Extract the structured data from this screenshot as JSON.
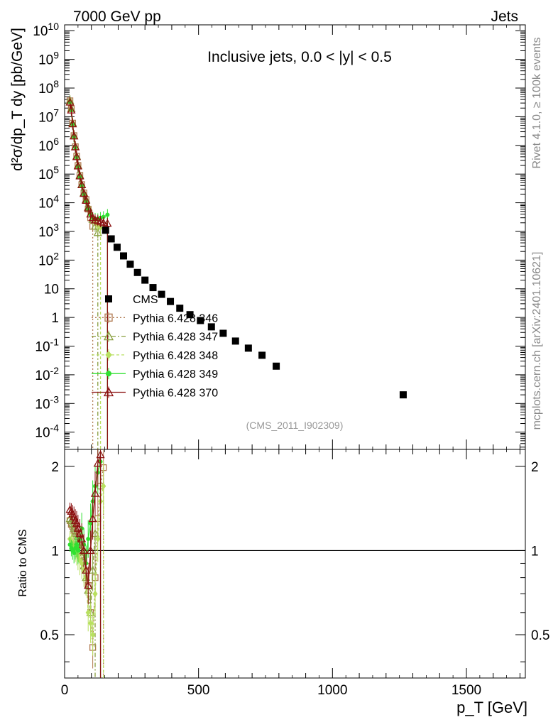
{
  "header": {
    "left": "7000 GeV pp",
    "right": "Jets"
  },
  "side_labels": {
    "top": "Rivet 4.1.0, ≥ 100k events",
    "bottom": "mcplots.cern.ch [arXiv:2401.10621]"
  },
  "chart_data": [
    {
      "type": "scatter",
      "title": "Inclusive jets, 0.0 < |y| < 0.5",
      "annotation": "(CMS_2011_I902309)",
      "xlabel": "p_T [GeV]",
      "ylabel": "d²σ/dp_T dy [pb/GeV]",
      "yscale": "log",
      "xlim": [
        0,
        1720
      ],
      "ylim": [
        2.5e-05,
        16000000000.0
      ],
      "x_ticks": [
        "0",
        "500",
        "1000",
        "1500"
      ],
      "y_ticks": [
        "10^-4",
        "10^-3",
        "10^-2",
        "10^-1",
        "1",
        "10",
        "10^2",
        "10^3",
        "10^4",
        "10^5",
        "10^6",
        "10^7",
        "10^8",
        "10^9",
        "10^10"
      ],
      "legend_position": "center",
      "series": [
        {
          "name": "CMS",
          "color": "#000000",
          "marker": "filled-square",
          "x": [
            153,
            174,
            196,
            220,
            245,
            272,
            300,
            330,
            362,
            395,
            430,
            468,
            507,
            548,
            592,
            638,
            686,
            737,
            790,
            1264
          ],
          "y": [
            1100,
            550,
            280,
            140,
            72,
            37,
            20,
            11,
            6.4,
            3.6,
            2.1,
            1.25,
            0.78,
            0.47,
            0.28,
            0.15,
            0.085,
            0.048,
            0.02,
            0.002
          ]
        },
        {
          "name": "Pythia 6.428 346",
          "color": "#b07a50",
          "marker": "open-square",
          "dash": "2,3",
          "x": [
            20,
            25,
            30,
            35,
            40,
            45,
            50,
            57,
            64,
            72,
            80,
            88,
            97,
            105
          ],
          "y": [
            36000000.0,
            19000000.0,
            6000000.0,
            2200000.0,
            900000.0,
            420000.0,
            200000.0,
            90000.0,
            43000.0,
            22000.0,
            13000.0,
            6000.0,
            3000.0,
            1500.0
          ]
        },
        {
          "name": "Pythia 6.428 347",
          "color": "#8aa040",
          "marker": "open-triangle",
          "dash": "6,3,2,3",
          "x": [
            20,
            25,
            30,
            35,
            40,
            45,
            50,
            57,
            64,
            72,
            80,
            88,
            97,
            105,
            114,
            124
          ],
          "y": [
            36000000.0,
            19000000.0,
            6000000.0,
            2200000.0,
            900000.0,
            420000.0,
            200000.0,
            90000.0,
            43000.0,
            22000.0,
            13000.0,
            7000.0,
            4000.0,
            2600.0,
            1500.0,
            900
          ]
        },
        {
          "name": "Pythia 6.428 348",
          "color": "#b8e060",
          "marker": "diamond",
          "dash": "4,3",
          "x": [
            20,
            25,
            30,
            35,
            40,
            45,
            50,
            57,
            64,
            72,
            80,
            88,
            97,
            105,
            114,
            124,
            134
          ],
          "y": [
            35000000.0,
            18000000.0,
            5800000.0,
            2100000.0,
            880000.0,
            410000.0,
            190000.0,
            85000.0,
            41000.0,
            21000.0,
            12000.0,
            7000.0,
            4200.0,
            2800.0,
            2000.0,
            1600.0,
            1400.0
          ]
        },
        {
          "name": "Pythia 6.428 349",
          "color": "#30e030",
          "marker": "circle",
          "x": [
            20,
            25,
            30,
            35,
            40,
            45,
            50,
            57,
            64,
            72,
            80,
            88,
            97,
            105,
            114,
            124,
            134,
            145,
            160
          ],
          "y": [
            33000000.0,
            17000000.0,
            5500000.0,
            2000000.0,
            840000.0,
            390000.0,
            180000.0,
            80000.0,
            39000.0,
            20000.0,
            11000.0,
            6000.0,
            3800.0,
            3000.0,
            2800.0,
            2700.0,
            3000.0,
            3200.0,
            3800.0
          ]
        },
        {
          "name": "Pythia 6.428 370",
          "color": "#8b1010",
          "marker": "open-triangle",
          "x": [
            20,
            25,
            30,
            35,
            40,
            45,
            50,
            57,
            64,
            72,
            80,
            88,
            97,
            105,
            114,
            124,
            134,
            145,
            160
          ],
          "y": [
            32000000.0,
            17000000.0,
            5600000.0,
            2100000.0,
            880000.0,
            400000.0,
            190000.0,
            85000.0,
            42000.0,
            21000.0,
            12000.0,
            6500.0,
            4000.0,
            3000.0,
            2500.0,
            2400.0,
            2200.0,
            2000.0,
            1900.0
          ]
        }
      ]
    },
    {
      "type": "scatter",
      "ylabel": "Ratio to CMS",
      "xlim": [
        0,
        1720
      ],
      "ylim": [
        0.35,
        2.3
      ],
      "reference": 1,
      "y_ticks": [
        "0.5",
        "1",
        "2"
      ],
      "series": [
        {
          "name": "Pythia 6.428 346",
          "color": "#b07a50",
          "marker": "open-square",
          "dash": "2,3",
          "x": [
            20,
            25,
            30,
            35,
            40,
            45,
            50,
            57,
            64,
            72,
            80,
            88,
            97,
            105,
            114,
            124,
            134,
            145
          ],
          "y": [
            1.28,
            1.24,
            1.22,
            1.18,
            1.15,
            1.12,
            1.05,
            1.0,
            0.95,
            0.92,
            0.88,
            0.75,
            0.6,
            0.45,
            0.8,
            1.3,
            1.7,
            1.98
          ]
        },
        {
          "name": "Pythia 6.428 347",
          "color": "#8aa040",
          "marker": "open-triangle",
          "dash": "6,3,2,3",
          "x": [
            20,
            25,
            30,
            35,
            40,
            45,
            50,
            57,
            64,
            72,
            80,
            88,
            97,
            105,
            114
          ],
          "y": [
            1.3,
            1.28,
            1.25,
            1.2,
            1.15,
            1.1,
            1.05,
            1.0,
            0.95,
            0.88,
            0.8,
            0.72,
            0.6,
            0.85,
            1.15
          ]
        },
        {
          "name": "Pythia 6.428 348",
          "color": "#b8e060",
          "marker": "diamond",
          "dash": "4,3",
          "x": [
            20,
            25,
            30,
            35,
            40,
            45,
            50,
            57,
            64,
            72,
            80,
            88,
            97,
            105,
            114,
            124,
            134,
            145
          ],
          "y": [
            1.1,
            1.08,
            1.05,
            1.03,
            1.0,
            0.98,
            0.95,
            0.92,
            0.9,
            0.85,
            0.8,
            0.6,
            0.55,
            0.5,
            0.7,
            1.1,
            1.5,
            1.7
          ]
        },
        {
          "name": "Pythia 6.428 349",
          "color": "#30e030",
          "marker": "circle",
          "x": [
            20,
            25,
            30,
            35,
            40,
            45,
            50,
            57,
            64,
            72,
            80,
            88,
            97,
            105,
            114,
            124,
            134
          ],
          "y": [
            1.05,
            1.02,
            1.0,
            0.98,
            1.02,
            1.05,
            1.0,
            1.1,
            1.2,
            1.05,
            0.9,
            1.1,
            1.25,
            1.5,
            1.7,
            1.9,
            2.08
          ]
        },
        {
          "name": "Pythia 6.428 370",
          "color": "#8b1010",
          "marker": "open-triangle",
          "x": [
            20,
            25,
            30,
            35,
            40,
            45,
            50,
            57,
            64,
            72,
            80,
            88,
            97,
            105,
            114,
            124,
            134
          ],
          "y": [
            1.4,
            1.38,
            1.35,
            1.32,
            1.28,
            1.25,
            1.2,
            1.15,
            1.1,
            1.0,
            0.85,
            0.75,
            1.0,
            1.3,
            1.6,
            2.05,
            2.2
          ]
        }
      ]
    }
  ]
}
